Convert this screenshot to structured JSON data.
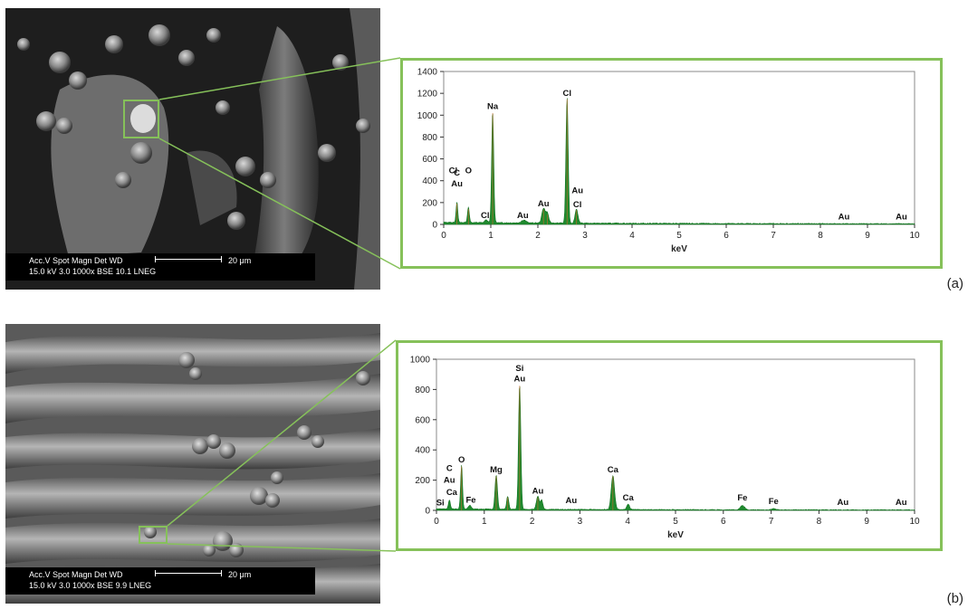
{
  "panels": [
    {
      "label": "(a)",
      "sem": {
        "row1": "Acc.V  Spot Magn   Det  WD",
        "row2": "15.0 kV 3.0   1000x   BSE 10.1  LNEG",
        "scale": "20 μm"
      }
    },
    {
      "label": "(b)",
      "sem": {
        "row1": "Acc.V  Spot Magn   Det  WD",
        "row2": "15.0 kV 3.0   1000x   BSE 9.9   LNEG",
        "scale": "20 μm"
      }
    }
  ],
  "colors": {
    "accent": "#86c15a",
    "fill": "#1f8a2e",
    "peak_line": "#c86a2a"
  },
  "chart_data": [
    {
      "type": "area",
      "xlabel": "keV",
      "ylabel": "",
      "xlim": [
        0,
        10
      ],
      "ylim": [
        0,
        1400
      ],
      "xticks": [
        0,
        1,
        2,
        3,
        4,
        5,
        6,
        7,
        8,
        9,
        10
      ],
      "yticks": [
        0,
        200,
        400,
        600,
        800,
        1000,
        1200,
        1400
      ],
      "grid": false,
      "baseline": 15,
      "peaks": [
        {
          "x": 0.28,
          "y": 190,
          "w": 0.018
        },
        {
          "x": 0.525,
          "y": 140,
          "w": 0.02
        },
        {
          "x": 0.9,
          "y": 25,
          "w": 0.03
        },
        {
          "x": 1.04,
          "y": 1020,
          "w": 0.022
        },
        {
          "x": 1.7,
          "y": 25,
          "w": 0.05
        },
        {
          "x": 2.12,
          "y": 135,
          "w": 0.035
        },
        {
          "x": 2.2,
          "y": 90,
          "w": 0.03
        },
        {
          "x": 2.62,
          "y": 1145,
          "w": 0.024
        },
        {
          "x": 2.82,
          "y": 130,
          "w": 0.03
        }
      ],
      "annotations": [
        {
          "text": "C",
          "x": 0.28,
          "y": 430
        },
        {
          "text": "Au",
          "x": 0.28,
          "y": 330
        },
        {
          "text": "Cl",
          "x": 0.2,
          "y": 450
        },
        {
          "text": "O",
          "x": 0.525,
          "y": 450
        },
        {
          "text": "Na",
          "x": 1.04,
          "y": 1040
        },
        {
          "text": "Cl",
          "x": 0.88,
          "y": 40
        },
        {
          "text": "Au",
          "x": 1.68,
          "y": 40
        },
        {
          "text": "Au",
          "x": 2.12,
          "y": 150
        },
        {
          "text": "Cl",
          "x": 2.62,
          "y": 1160
        },
        {
          "text": "Au",
          "x": 2.84,
          "y": 270
        },
        {
          "text": "Cl",
          "x": 2.84,
          "y": 140
        },
        {
          "text": "Au",
          "x": 8.5,
          "y": 30
        },
        {
          "text": "Au",
          "x": 9.72,
          "y": 30
        }
      ]
    },
    {
      "type": "area",
      "xlabel": "keV",
      "ylabel": "",
      "xlim": [
        0,
        10
      ],
      "ylim": [
        0,
        1000
      ],
      "xticks": [
        0,
        1,
        2,
        3,
        4,
        5,
        6,
        7,
        8,
        9,
        10
      ],
      "yticks": [
        0,
        200,
        400,
        600,
        800,
        1000
      ],
      "grid": false,
      "baseline": 8,
      "peaks": [
        {
          "x": 0.27,
          "y": 60,
          "w": 0.02
        },
        {
          "x": 0.525,
          "y": 290,
          "w": 0.02
        },
        {
          "x": 0.7,
          "y": 25,
          "w": 0.03
        },
        {
          "x": 1.25,
          "y": 225,
          "w": 0.025
        },
        {
          "x": 1.49,
          "y": 85,
          "w": 0.022
        },
        {
          "x": 1.74,
          "y": 825,
          "w": 0.024
        },
        {
          "x": 2.12,
          "y": 85,
          "w": 0.03
        },
        {
          "x": 2.2,
          "y": 60,
          "w": 0.025
        },
        {
          "x": 3.69,
          "y": 225,
          "w": 0.035
        },
        {
          "x": 4.01,
          "y": 35,
          "w": 0.03
        },
        {
          "x": 6.4,
          "y": 28,
          "w": 0.045
        },
        {
          "x": 7.05,
          "y": 8,
          "w": 0.04
        }
      ],
      "annotations": [
        {
          "text": "C",
          "x": 0.27,
          "y": 250
        },
        {
          "text": "Au",
          "x": 0.27,
          "y": 170
        },
        {
          "text": "Ca",
          "x": 0.32,
          "y": 90
        },
        {
          "text": "Si",
          "x": 0.08,
          "y": 20
        },
        {
          "text": "O",
          "x": 0.525,
          "y": 305
        },
        {
          "text": "Fe",
          "x": 0.72,
          "y": 40
        },
        {
          "text": "Mg",
          "x": 1.25,
          "y": 240
        },
        {
          "text": "Si",
          "x": 1.74,
          "y": 910
        },
        {
          "text": "Au",
          "x": 1.74,
          "y": 840
        },
        {
          "text": "Au",
          "x": 2.12,
          "y": 100
        },
        {
          "text": "Au",
          "x": 2.82,
          "y": 35
        },
        {
          "text": "Ca",
          "x": 3.69,
          "y": 240
        },
        {
          "text": "Ca",
          "x": 4.01,
          "y": 55
        },
        {
          "text": "Fe",
          "x": 6.4,
          "y": 55
        },
        {
          "text": "Fe",
          "x": 7.05,
          "y": 30
        },
        {
          "text": "Au",
          "x": 8.5,
          "y": 25
        },
        {
          "text": "Au",
          "x": 9.72,
          "y": 25
        }
      ]
    }
  ]
}
